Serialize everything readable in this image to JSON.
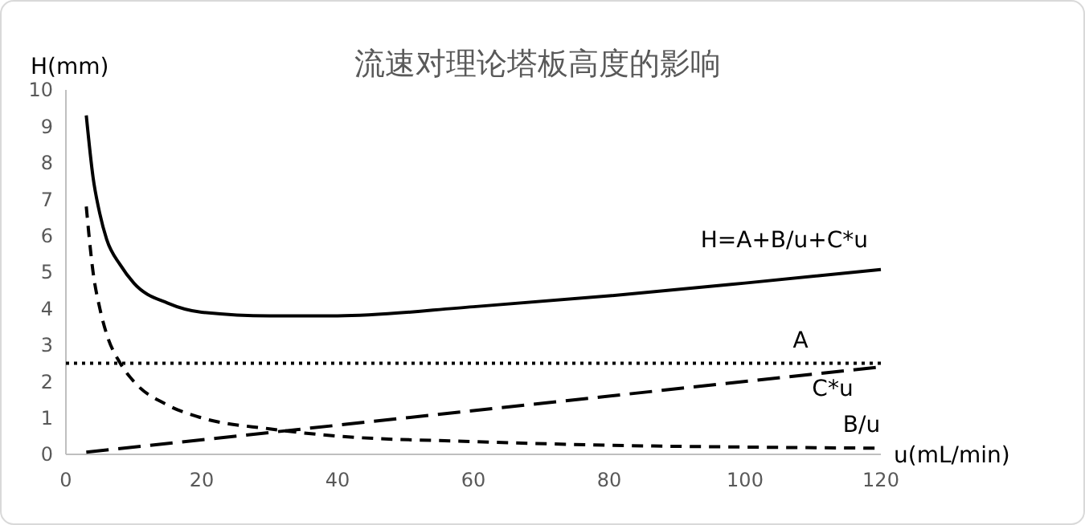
{
  "chart_data": {
    "type": "line",
    "title": "流速对理论塔板高度的影响",
    "xlabel": "u(mL/min)",
    "ylabel": "H(mm)",
    "xlim": [
      0,
      120
    ],
    "ylim": [
      0,
      10
    ],
    "xticks": [
      0,
      20,
      40,
      60,
      80,
      100,
      120
    ],
    "yticks": [
      0,
      1,
      2,
      3,
      4,
      5,
      6,
      7,
      8,
      9,
      10
    ],
    "grid": false,
    "legend": false,
    "marker": "none",
    "series": [
      {
        "name": "H=A+B/u+C*u",
        "color": "#000000",
        "line_style": "solid",
        "x": [
          3,
          4,
          5,
          6,
          8,
          10,
          15,
          20,
          30,
          40,
          60,
          80,
          100,
          120
        ],
        "values": [
          9.3,
          7.6,
          6.6,
          5.9,
          5.2,
          4.7,
          4.15,
          3.9,
          3.8,
          3.8,
          4.05,
          4.35,
          4.7,
          5.07
        ]
      },
      {
        "name": "A",
        "color": "#000000",
        "line_style": "dotted",
        "x": [
          0,
          120
        ],
        "values": [
          2.5,
          2.5
        ]
      },
      {
        "name": "C*u",
        "color": "#000000",
        "line_style": "dashed",
        "x": [
          3,
          120
        ],
        "values": [
          0.06,
          2.4
        ]
      },
      {
        "name": "B/u",
        "color": "#000000",
        "line_style": "dashed",
        "x": [
          3,
          4,
          5,
          6,
          8,
          10,
          15,
          20,
          30,
          40,
          60,
          80,
          100,
          120
        ],
        "values": [
          6.8,
          5.0,
          4.0,
          3.3,
          2.5,
          2.0,
          1.35,
          1.0,
          0.7,
          0.5,
          0.35,
          0.25,
          0.2,
          0.17
        ]
      }
    ]
  }
}
